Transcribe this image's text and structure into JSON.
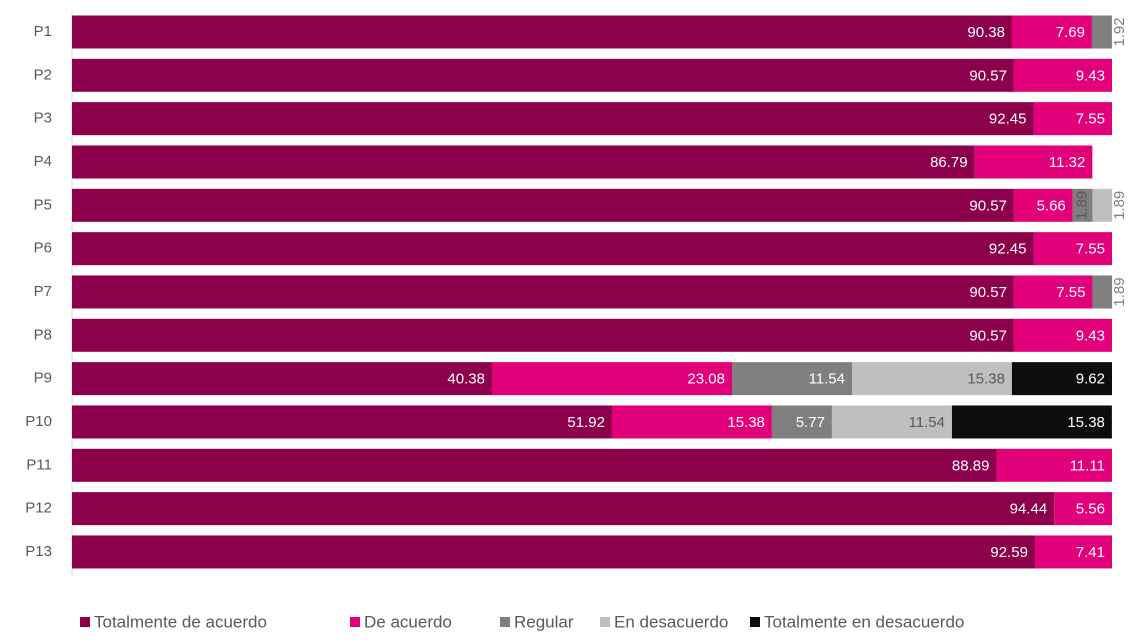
{
  "chart_data": {
    "type": "stacked_barh",
    "categories": [
      "P1",
      "P2",
      "P3",
      "P4",
      "P5",
      "P6",
      "P7",
      "P8",
      "P9",
      "P10",
      "P11",
      "P12",
      "P13"
    ],
    "series": [
      {
        "name": "Totalmente de acuerdo",
        "color": "#8c004b",
        "values": [
          90.38,
          90.57,
          92.45,
          86.79,
          90.57,
          92.45,
          90.57,
          90.57,
          40.38,
          51.92,
          88.89,
          94.44,
          92.59
        ]
      },
      {
        "name": "De acuerdo",
        "color": "#e2007a",
        "values": [
          7.69,
          9.43,
          7.55,
          11.32,
          5.66,
          7.55,
          7.55,
          9.43,
          23.08,
          15.38,
          11.11,
          5.56,
          7.41
        ]
      },
      {
        "name": "Regular",
        "color": "#7f7f7f",
        "values": [
          1.92,
          null,
          null,
          null,
          1.89,
          null,
          1.89,
          null,
          11.54,
          5.77,
          null,
          null,
          null
        ]
      },
      {
        "name": "En desacuerdo",
        "color": "#bfbfbf",
        "values": [
          null,
          null,
          null,
          null,
          1.89,
          null,
          null,
          null,
          15.38,
          11.54,
          null,
          null,
          null
        ]
      },
      {
        "name": "Totalmente en desacuerdo",
        "color": "#0d0d0d",
        "values": [
          null,
          null,
          null,
          null,
          null,
          null,
          null,
          null,
          9.62,
          15.38,
          null,
          null,
          null
        ]
      }
    ],
    "xlim": [
      0,
      100
    ]
  }
}
